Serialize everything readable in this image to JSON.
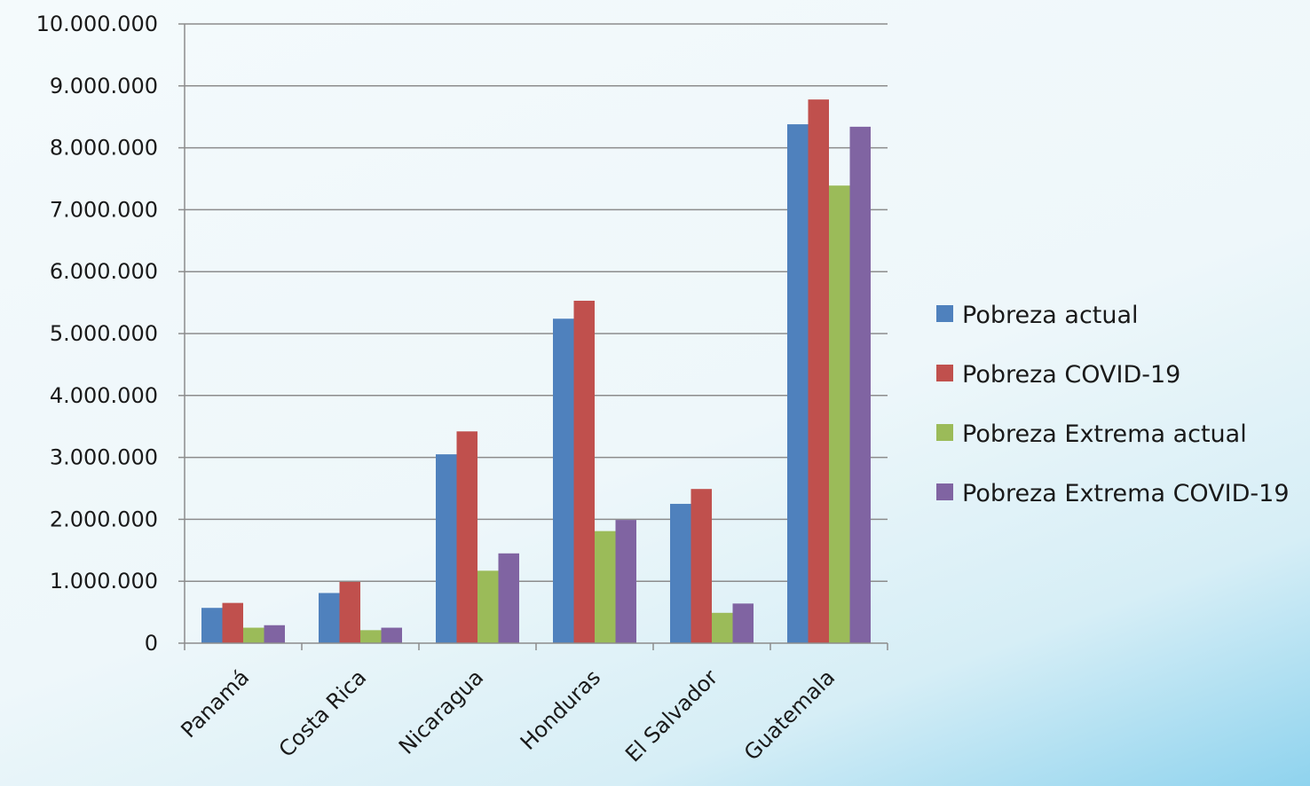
{
  "chart_data": {
    "type": "bar",
    "title": "",
    "xlabel": "",
    "ylabel": "",
    "ylim": [
      0,
      10000000
    ],
    "yticks": [
      "0",
      "1.000.000",
      "2.000.000",
      "3.000.000",
      "4.000.000",
      "5.000.000",
      "6.000.000",
      "7.000.000",
      "8.000.000",
      "9.000.000",
      "10.000.000"
    ],
    "ytick_values": [
      0,
      1000000,
      2000000,
      3000000,
      4000000,
      5000000,
      6000000,
      7000000,
      8000000,
      9000000,
      10000000
    ],
    "grid": true,
    "legend_position": "right",
    "categories": [
      "Panamá",
      "Costa Rica",
      "Nicaragua",
      "Honduras",
      "El Salvador",
      "Guatemala"
    ],
    "series": [
      {
        "name": "Pobreza actual",
        "color": "#4F81BD",
        "values": [
          570000,
          810000,
          3050000,
          5240000,
          2250000,
          8380000
        ]
      },
      {
        "name": "Pobreza COVID-19",
        "color": "#C0504D",
        "values": [
          650000,
          990000,
          3420000,
          5530000,
          2490000,
          8780000
        ]
      },
      {
        "name": "Pobreza Extrema actual",
        "color": "#9BBB59",
        "values": [
          250000,
          210000,
          1170000,
          1810000,
          490000,
          7390000
        ]
      },
      {
        "name": "Pobreza Extrema COVID-19",
        "color": "#8064A2",
        "values": [
          290000,
          250000,
          1450000,
          1990000,
          640000,
          8340000
        ]
      }
    ]
  }
}
